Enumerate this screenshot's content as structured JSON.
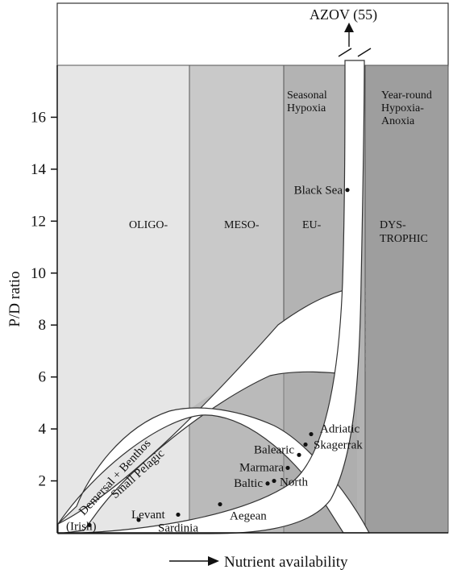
{
  "chart_data": {
    "type": "scatter",
    "ylabel": "P/D ratio",
    "xlabel": "Nutrient availability",
    "ylim": [
      0,
      17
    ],
    "y_ticks": [
      2,
      4,
      6,
      8,
      10,
      12,
      14,
      16
    ],
    "zones": [
      {
        "name": "OLIGO-",
        "color": "#e6e6e6"
      },
      {
        "name": "MESO-",
        "color": "#c9c9c9"
      },
      {
        "name": "EU-",
        "color": "#b3b3b3"
      },
      {
        "name": "DYS-\nTROPHIC",
        "color": "#9e9e9e"
      }
    ],
    "zone_annotations": [
      {
        "zone": "EU-",
        "text": "Seasonal\nHypoxia"
      },
      {
        "zone": "DYS-\nTROPHIC",
        "text": "Year-round\nHypoxia-\nAnoxia"
      }
    ],
    "bands": [
      {
        "name": "Demersal + Benthos"
      },
      {
        "name": "Small Pelagic"
      }
    ],
    "points": [
      {
        "label": "(Irish)",
        "y": 0.3
      },
      {
        "label": "Levant",
        "y": 0.5
      },
      {
        "label": "Sardinia",
        "y": 0.7
      },
      {
        "label": "Aegean",
        "y": 1.1
      },
      {
        "label": "Baltic",
        "y": 1.9
      },
      {
        "label": "North",
        "y": 2.0
      },
      {
        "label": "Marmara",
        "y": 2.5
      },
      {
        "label": "Balearic",
        "y": 3.0
      },
      {
        "label": "Skagerrak",
        "y": 3.4
      },
      {
        "label": "Adriatic",
        "y": 3.8
      },
      {
        "label": "Black Sea",
        "y": 13.2
      }
    ],
    "offscale": {
      "label": "AZOV (55)",
      "y": 55
    }
  }
}
